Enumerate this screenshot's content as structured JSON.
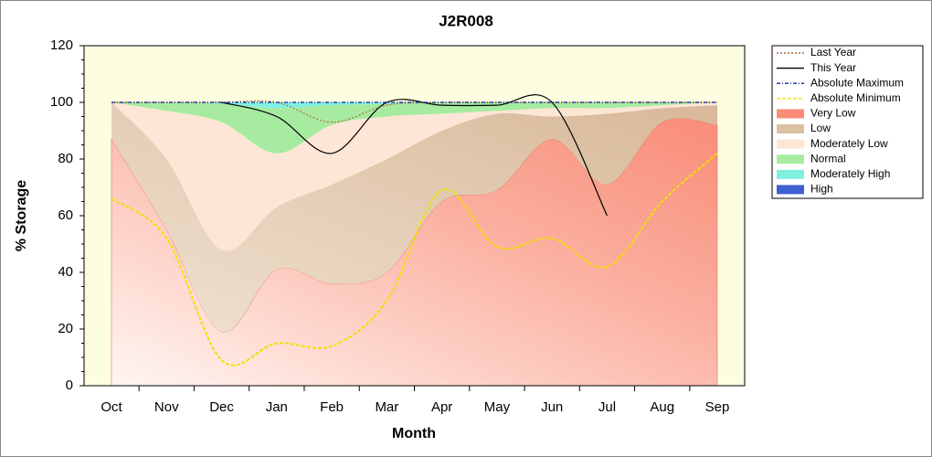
{
  "chart_data": {
    "type": "area-line",
    "title": "J2R008",
    "x_label": "Month",
    "y_label": "% Storage",
    "categories": [
      "Oct",
      "Nov",
      "Dec",
      "Jan",
      "Feb",
      "Mar",
      "Apr",
      "May",
      "Jun",
      "Jul",
      "Aug",
      "Sep"
    ],
    "ylim": [
      0,
      120
    ],
    "yticks": [
      0,
      20,
      40,
      60,
      80,
      100,
      120
    ],
    "bands": [
      {
        "name": "Very Low",
        "color": "#f98c78",
        "values": [
          87,
          55,
          19,
          41,
          36,
          40,
          65,
          69,
          87,
          71,
          93,
          92
        ]
      },
      {
        "name": "Low",
        "color": "#dcc0a2",
        "values": [
          13,
          25,
          29,
          22,
          35,
          40,
          25,
          27,
          8,
          25,
          5,
          7
        ]
      },
      {
        "name": "Moderately Low",
        "color": "#fde6d6",
        "values": [
          0,
          17,
          45,
          19,
          21,
          15,
          6,
          1,
          3,
          2,
          1,
          1
        ]
      },
      {
        "name": "Normal",
        "color": "#a6eba0",
        "values": [
          0,
          3,
          6.5,
          16,
          7,
          4.5,
          4,
          3,
          2,
          2,
          1,
          0
        ]
      },
      {
        "name": "Moderately High",
        "color": "#80f0e0",
        "values": [
          0,
          0,
          0.5,
          2,
          1,
          0.5,
          0,
          0,
          0,
          0,
          0,
          0
        ]
      },
      {
        "name": "High",
        "color": "#4060d0",
        "values": [
          0,
          0,
          0,
          0,
          0,
          0,
          0,
          0,
          0,
          0,
          0,
          0
        ]
      }
    ],
    "series": [
      {
        "name": "Last Year",
        "color": "#b07040",
        "dash": "2,2",
        "values": [
          100,
          100,
          100,
          100,
          93,
          99,
          100,
          100,
          100,
          100,
          100,
          100
        ]
      },
      {
        "name": "This Year",
        "color": "#000000",
        "dash": "",
        "values": [
          null,
          null,
          100,
          95,
          82,
          100,
          99,
          99,
          100,
          60,
          null,
          null
        ]
      },
      {
        "name": "Absolute Maximum",
        "color": "#1020a0",
        "dash": "4,2,1,2",
        "values": [
          100,
          100,
          100,
          100,
          100,
          100,
          100,
          100,
          100,
          100,
          100,
          100
        ]
      },
      {
        "name": "Absolute Minimum",
        "color": "#f0e000",
        "dash": "4,2",
        "values": [
          66,
          52,
          9,
          15,
          14,
          30,
          69,
          49,
          52,
          42,
          65,
          82
        ]
      }
    ]
  }
}
